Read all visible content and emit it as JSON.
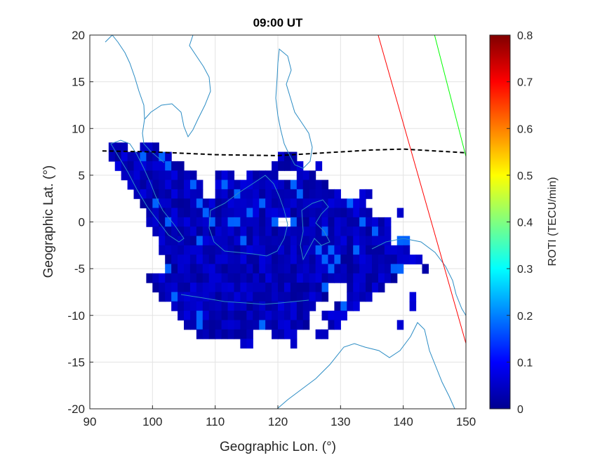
{
  "chart_data": {
    "type": "heatmap",
    "title": "09:00 UT",
    "xlabel": "Geographic Lon. (°)",
    "ylabel": "Geographic Lat. (°)",
    "xlim": [
      90,
      150
    ],
    "ylim": [
      -20,
      20
    ],
    "xticks": [
      90,
      100,
      110,
      120,
      130,
      140,
      150
    ],
    "yticks": [
      20,
      15,
      10,
      5,
      0,
      -5,
      -10,
      -15,
      -20
    ],
    "grid": true,
    "colorbar": {
      "label": "ROTI (TECU/min)",
      "range": [
        0,
        0.8
      ],
      "ticks": [
        "0",
        "0.1",
        "0.2",
        "0.3",
        "0.4",
        "0.5",
        "0.6",
        "0.7",
        "0.8"
      ],
      "colormap": "jet"
    },
    "roti_coverage": {
      "typical_value": 0.05,
      "max_value": 0.15,
      "cells_by_latitude": [
        {
          "lat": 8,
          "lon_ranges": [
            [
              93,
              96
            ],
            [
              98,
              101
            ]
          ]
        },
        {
          "lat": 7,
          "lon_ranges": [
            [
              93,
              103
            ],
            [
              120,
              123
            ]
          ]
        },
        {
          "lat": 6,
          "lon_ranges": [
            [
              94,
              105
            ],
            [
              119,
              124
            ],
            [
              126,
              127
            ]
          ]
        },
        {
          "lat": 5,
          "lon_ranges": [
            [
              95,
              107
            ],
            [
              110,
              113
            ],
            [
              115,
              120
            ],
            [
              123,
              126
            ]
          ]
        },
        {
          "lat": 4,
          "lon_ranges": [
            [
              96,
              108
            ],
            [
              110,
              128
            ]
          ]
        },
        {
          "lat": 3,
          "lon_ranges": [
            [
              97,
              108
            ],
            [
              110,
              130
            ],
            [
              133,
              135
            ]
          ]
        },
        {
          "lat": 2,
          "lon_ranges": [
            [
              98,
              134
            ]
          ]
        },
        {
          "lat": 1,
          "lon_ranges": [
            [
              99,
              135
            ],
            [
              139,
              140
            ]
          ]
        },
        {
          "lat": 0,
          "lon_ranges": [
            [
              99,
              120
            ],
            [
              122,
              138
            ]
          ]
        },
        {
          "lat": -1,
          "lon_ranges": [
            [
              100,
              138
            ]
          ]
        },
        {
          "lat": -2,
          "lon_ranges": [
            [
              101,
              138
            ],
            [
              139,
              141
            ]
          ]
        },
        {
          "lat": -3,
          "lon_ranges": [
            [
              101,
              141
            ]
          ]
        },
        {
          "lat": -4,
          "lon_ranges": [
            [
              102,
              143
            ]
          ]
        },
        {
          "lat": -5,
          "lon_ranges": [
            [
              102,
              140
            ],
            [
              143,
              144
            ]
          ]
        },
        {
          "lat": -6,
          "lon_ranges": [
            [
              99,
              139
            ]
          ]
        },
        {
          "lat": -7,
          "lon_ranges": [
            [
              100,
              128
            ],
            [
              131,
              137
            ]
          ]
        },
        {
          "lat": -8,
          "lon_ranges": [
            [
              101,
              128
            ],
            [
              131,
              135
            ],
            [
              141,
              142
            ]
          ]
        },
        {
          "lat": -9,
          "lon_ranges": [
            [
              103,
              126
            ],
            [
              129,
              133
            ],
            [
              141,
              142
            ]
          ]
        },
        {
          "lat": -10,
          "lon_ranges": [
            [
              104,
              125
            ],
            [
              127,
              131
            ]
          ]
        },
        {
          "lat": -11,
          "lon_ranges": [
            [
              105,
              125
            ],
            [
              128,
              130
            ],
            [
              139,
              140
            ]
          ]
        },
        {
          "lat": -12,
          "lon_ranges": [
            [
              107,
              116
            ],
            [
              119,
              123
            ],
            [
              126,
              128
            ]
          ]
        },
        {
          "lat": -13,
          "lon_ranges": [
            [
              114,
              116
            ],
            [
              122,
              123
            ]
          ]
        }
      ]
    },
    "lines": [
      {
        "color": "#000000",
        "style": "dashed",
        "points": [
          [
            92,
            7.6
          ],
          [
            100,
            7.5
          ],
          [
            110,
            7.2
          ],
          [
            120,
            7.1
          ],
          [
            125,
            7.3
          ],
          [
            130,
            7.5
          ],
          [
            135,
            7.7
          ],
          [
            140,
            7.8
          ],
          [
            145,
            7.6
          ],
          [
            150,
            7.4
          ]
        ]
      },
      {
        "color": "#ff0000",
        "style": "solid",
        "points": [
          [
            136,
            20
          ],
          [
            150,
            -13
          ]
        ]
      },
      {
        "color": "#00ff00",
        "style": "solid",
        "points": [
          [
            145,
            20
          ],
          [
            150,
            7
          ]
        ]
      }
    ]
  }
}
